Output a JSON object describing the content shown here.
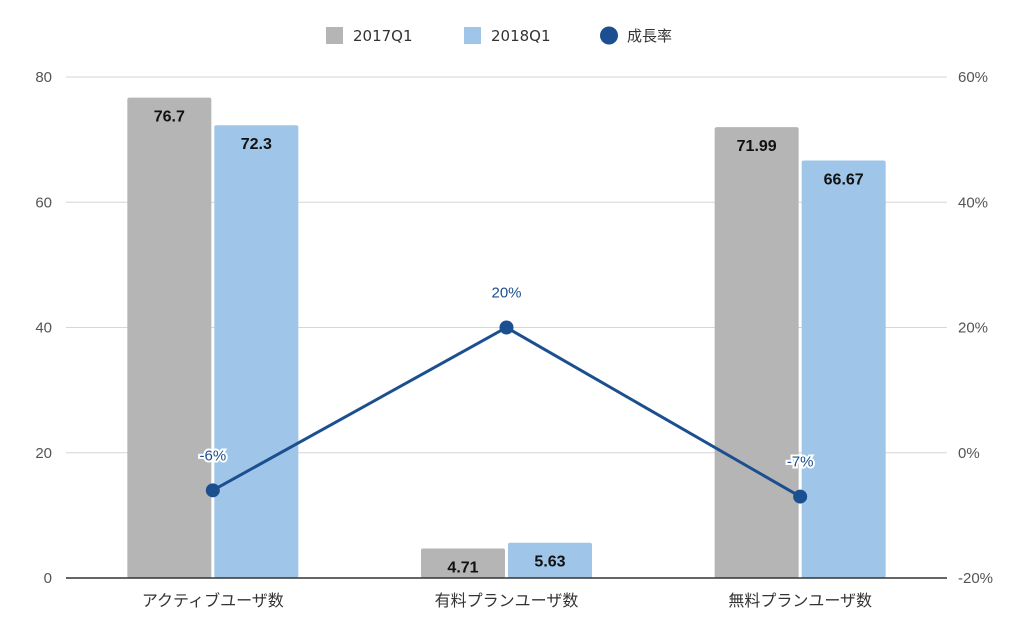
{
  "chart_data": {
    "type": "bar",
    "categories": [
      "アクティブユーザ数",
      "有料プランユーザ数",
      "無料プランユーザ数"
    ],
    "series": [
      {
        "name": "2017Q1",
        "kind": "bar",
        "axis": "left",
        "color": "#b5b5b5",
        "values": [
          76.7,
          4.71,
          71.99
        ],
        "labels": [
          "76.7",
          "4.71",
          "71.99"
        ]
      },
      {
        "name": "2018Q1",
        "kind": "bar",
        "axis": "left",
        "color": "#9fc5e8",
        "values": [
          72.3,
          5.63,
          66.67
        ],
        "labels": [
          "72.3",
          "5.63",
          "66.67"
        ]
      },
      {
        "name": "成長率",
        "kind": "line",
        "axis": "right",
        "color": "#1b4f8f",
        "values": [
          -6,
          20,
          -7
        ],
        "labels": [
          "-6%",
          "20%",
          "-7%"
        ]
      }
    ],
    "left_axis": {
      "min": 0,
      "max": 80,
      "ticks": [
        "0",
        "20",
        "40",
        "60",
        "80"
      ]
    },
    "right_axis": {
      "min": -20,
      "max": 60,
      "ticks": [
        "-20%",
        "0%",
        "20%",
        "40%",
        "60%"
      ]
    },
    "grid": true,
    "legend_position": "top-center"
  }
}
